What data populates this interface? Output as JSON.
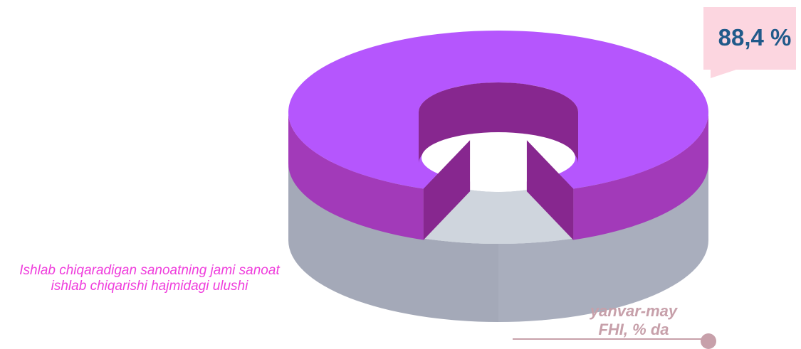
{
  "chart_data": {
    "type": "pie",
    "style": "3d-donut",
    "title": "",
    "slices": [
      {
        "name": "",
        "value": 88.4,
        "color": "#b556fd"
      },
      {
        "name": "",
        "value": 11.6,
        "color": "#cfd5dd"
      }
    ],
    "value_label": "88,4 %",
    "caption": "Ishlab chiqaradigan sanoatning jami sanoat ishlab chiqarishi hajmidagi ulushi",
    "period_line1": "yanvar-may",
    "period_line2": "FHI, % da",
    "colors": {
      "main_top": "#b556fd",
      "main_side": "#a23ab9",
      "main_inner": "#87278f",
      "rest_top": "#cfd5dd",
      "rest_side": "#a9aebd",
      "caption": "#ef3ddc",
      "callout_bg": "#fcd6e0",
      "callout_text": "#205a8a",
      "period_text": "#c7a0aa"
    }
  }
}
